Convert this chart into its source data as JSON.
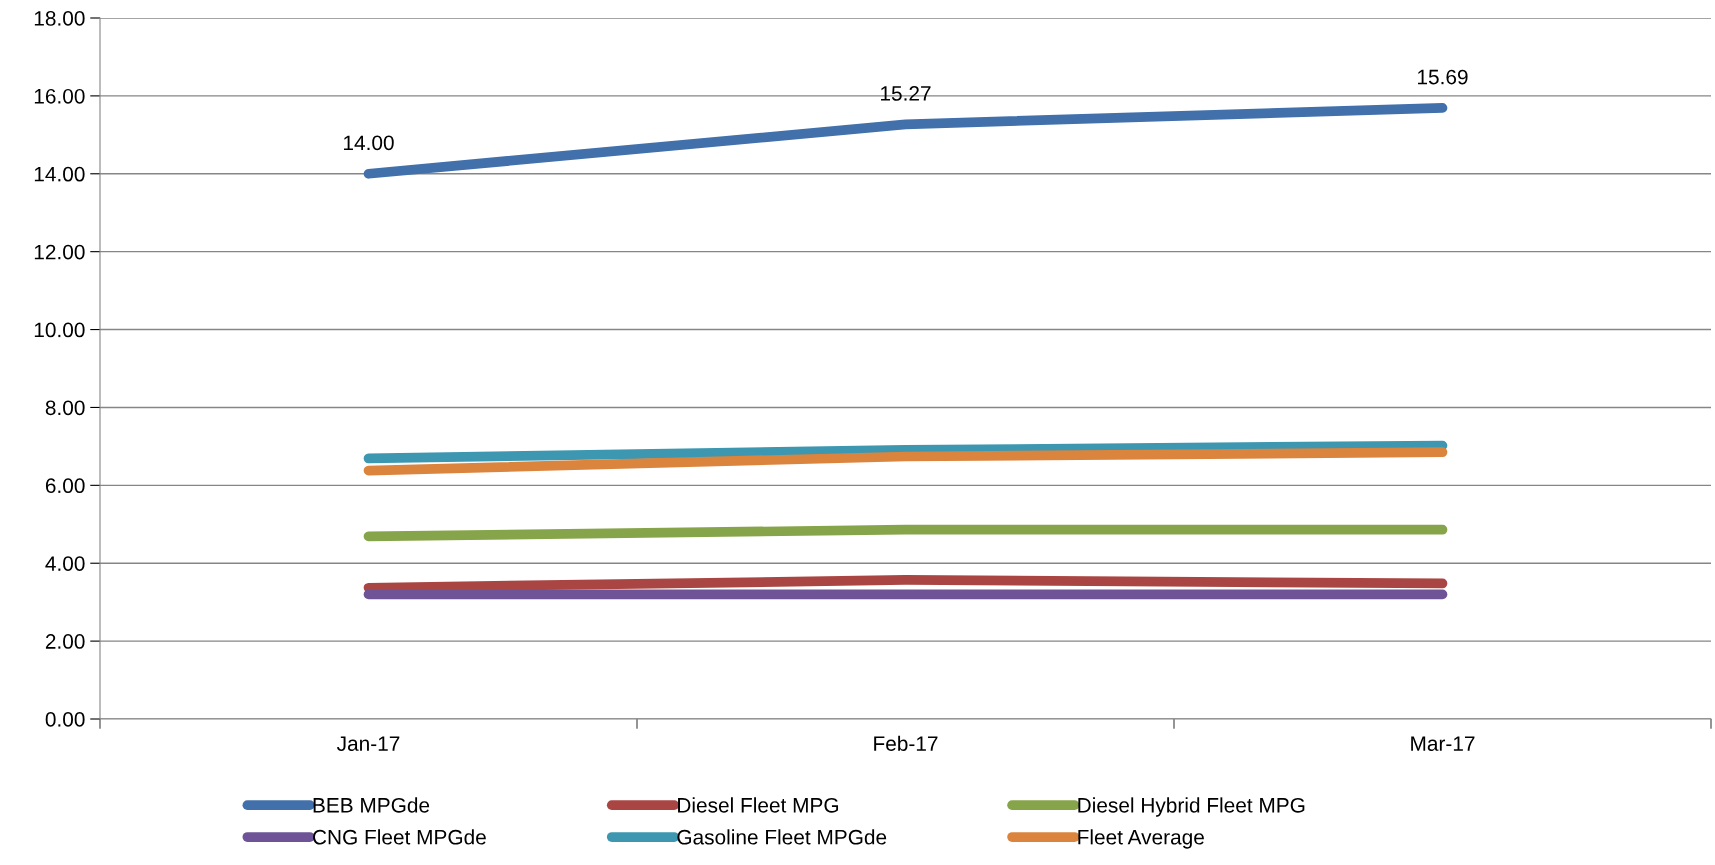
{
  "chart_data": {
    "type": "line",
    "categories": [
      "Jan-17",
      "Feb-17",
      "Mar-17"
    ],
    "series": [
      {
        "name": "BEB MPGde",
        "color": "#4170ab",
        "values": [
          14.0,
          15.27,
          15.69
        ],
        "value_labels": [
          "14.00",
          "15.27",
          "15.69"
        ]
      },
      {
        "name": "Diesel Fleet MPG",
        "color": "#a94643",
        "values": [
          3.37,
          3.57,
          3.48
        ]
      },
      {
        "name": "Diesel Hybrid Fleet MPG",
        "color": "#86a44a",
        "values": [
          4.69,
          4.86,
          4.86
        ]
      },
      {
        "name": "CNG Fleet MPGde",
        "color": "#6e5496",
        "values": [
          3.2,
          3.2,
          3.2
        ]
      },
      {
        "name": "Gasoline Fleet MPGde",
        "color": "#3d97b0",
        "values": [
          6.69,
          6.91,
          7.02
        ]
      },
      {
        "name": "Fleet Average",
        "color": "#db843d",
        "values": [
          6.38,
          6.74,
          6.85
        ]
      }
    ],
    "ylim": [
      0,
      18
    ],
    "yticks": [
      {
        "value": 0,
        "label": "0.00"
      },
      {
        "value": 2,
        "label": "2.00"
      },
      {
        "value": 4,
        "label": "4.00"
      },
      {
        "value": 6,
        "label": "6.00"
      },
      {
        "value": 8,
        "label": "8.00"
      },
      {
        "value": 10,
        "label": "10.00"
      },
      {
        "value": 12,
        "label": "12.00"
      },
      {
        "value": 14,
        "label": "14.00"
      },
      {
        "value": 16,
        "label": "16.00"
      },
      {
        "value": 18,
        "label": "18.00"
      }
    ],
    "grid": "y",
    "legend": "bottom",
    "marker": "none",
    "line_style": "solid"
  }
}
